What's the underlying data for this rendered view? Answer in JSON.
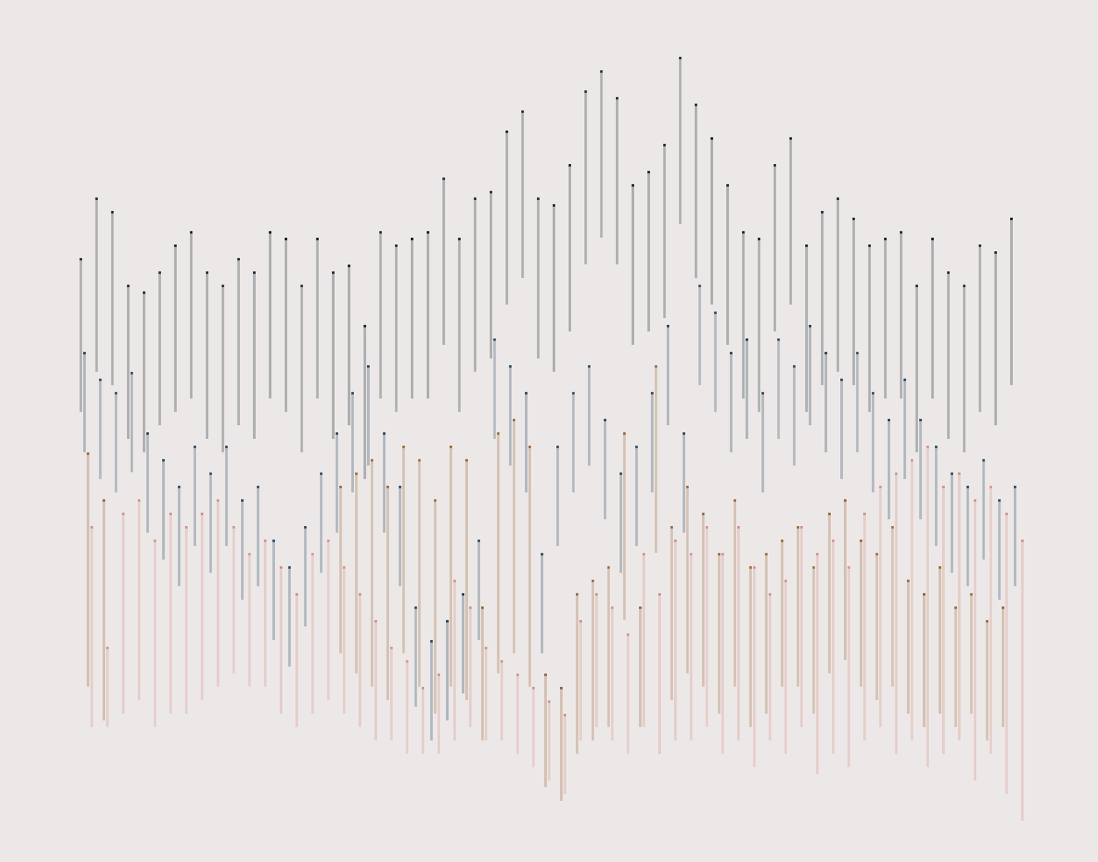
{
  "chart_data": {
    "type": "bar",
    "stacked": false,
    "grid": false,
    "tick_labels": false,
    "ylim": [
      0,
      120
    ],
    "categories": [
      null,
      null,
      null,
      null,
      null,
      null,
      null,
      null,
      null,
      null,
      null,
      null,
      null,
      null,
      null,
      null,
      null,
      null,
      null,
      null,
      null,
      null,
      null,
      null,
      null,
      null,
      null,
      null,
      null,
      null,
      null,
      null,
      null,
      null,
      null,
      null,
      null,
      null,
      null,
      null,
      null,
      null,
      null,
      null,
      null,
      null,
      null,
      null,
      null,
      null,
      null,
      null,
      null,
      null,
      null,
      null,
      null,
      null,
      null,
      null
    ],
    "series": [
      {
        "color": "#1f2a33",
        "values": [
          [
            64,
            87
          ],
          [
            70,
            96
          ],
          [
            68,
            94
          ],
          [
            60,
            83
          ],
          [
            58,
            82
          ],
          [
            62,
            85
          ],
          [
            64,
            89
          ],
          [
            66,
            91
          ],
          [
            60,
            85
          ],
          [
            58,
            83
          ],
          [
            62,
            87
          ],
          [
            60,
            85
          ],
          [
            66,
            91
          ],
          [
            64,
            90
          ],
          [
            58,
            83
          ],
          [
            66,
            90
          ],
          [
            60,
            85
          ],
          [
            62,
            86
          ],
          [
            54,
            77
          ],
          [
            66,
            91
          ],
          [
            64,
            89
          ],
          [
            66,
            90
          ],
          [
            66,
            91
          ],
          [
            74,
            99
          ],
          [
            64,
            90
          ],
          [
            70,
            96
          ],
          [
            72,
            97
          ],
          [
            80,
            106
          ],
          [
            84,
            109
          ],
          [
            72,
            96
          ],
          [
            70,
            95
          ],
          [
            76,
            101
          ],
          [
            86,
            112
          ],
          [
            90,
            115
          ],
          [
            86,
            111
          ],
          [
            74,
            98
          ],
          [
            76,
            100
          ],
          [
            78,
            104
          ],
          [
            92,
            117
          ],
          [
            84,
            110
          ],
          [
            80,
            105
          ],
          [
            74,
            98
          ],
          [
            66,
            91
          ],
          [
            64,
            90
          ],
          [
            76,
            101
          ],
          [
            80,
            105
          ],
          [
            64,
            89
          ],
          [
            68,
            94
          ],
          [
            70,
            96
          ],
          [
            68,
            93
          ],
          [
            64,
            89
          ],
          [
            66,
            90
          ],
          [
            66,
            91
          ],
          [
            58,
            83
          ],
          [
            66,
            90
          ],
          [
            60,
            85
          ],
          [
            58,
            83
          ],
          [
            64,
            89
          ],
          [
            62,
            88
          ],
          [
            68,
            93
          ]
        ]
      },
      {
        "color": "#2c4a62",
        "values": [
          [
            58,
            73
          ],
          [
            54,
            69
          ],
          [
            52,
            67
          ],
          [
            55,
            70
          ],
          [
            46,
            61
          ],
          [
            42,
            57
          ],
          [
            38,
            53
          ],
          [
            44,
            59
          ],
          [
            40,
            55
          ],
          [
            44,
            59
          ],
          [
            36,
            51
          ],
          [
            38,
            53
          ],
          [
            30,
            45
          ],
          [
            26,
            41
          ],
          [
            32,
            47
          ],
          [
            40,
            55
          ],
          [
            46,
            61
          ],
          [
            52,
            67
          ],
          [
            56,
            71
          ],
          [
            46,
            61
          ],
          [
            38,
            53
          ],
          [
            20,
            35
          ],
          [
            15,
            30
          ],
          [
            18,
            33
          ],
          [
            22,
            37
          ],
          [
            30,
            45
          ],
          [
            60,
            75
          ],
          [
            56,
            71
          ],
          [
            52,
            67
          ],
          [
            28,
            43
          ],
          [
            44,
            59
          ],
          [
            52,
            67
          ],
          [
            56,
            71
          ],
          [
            48,
            63
          ],
          [
            40,
            55
          ],
          [
            44,
            59
          ],
          [
            52,
            67
          ],
          [
            62,
            77
          ],
          [
            46,
            61
          ],
          [
            68,
            83
          ],
          [
            64,
            79
          ],
          [
            58,
            73
          ],
          [
            60,
            75
          ],
          [
            52,
            67
          ],
          [
            60,
            75
          ],
          [
            56,
            71
          ],
          [
            62,
            77
          ],
          [
            58,
            73
          ],
          [
            54,
            69
          ],
          [
            58,
            73
          ],
          [
            52,
            67
          ],
          [
            48,
            63
          ],
          [
            54,
            69
          ],
          [
            48,
            63
          ],
          [
            44,
            59
          ],
          [
            40,
            55
          ],
          [
            38,
            53
          ],
          [
            42,
            57
          ],
          [
            36,
            51
          ],
          [
            38,
            53
          ]
        ]
      },
      {
        "color": "#9a6b3c",
        "values": [
          [
            23,
            58
          ],
          [
            18,
            51
          ],
          null,
          null,
          null,
          null,
          null,
          null,
          null,
          null,
          null,
          null,
          null,
          null,
          null,
          null,
          [
            28,
            53
          ],
          [
            25,
            55
          ],
          [
            23,
            57
          ],
          [
            21,
            53
          ],
          [
            28,
            59
          ],
          [
            23,
            57
          ],
          [
            19,
            51
          ],
          [
            23,
            59
          ],
          [
            21,
            57
          ],
          [
            15,
            35
          ],
          [
            25,
            61
          ],
          [
            28,
            63
          ],
          [
            23,
            59
          ],
          [
            8,
            25
          ],
          [
            6,
            23
          ],
          [
            13,
            37
          ],
          [
            15,
            39
          ],
          [
            17,
            41
          ],
          [
            33,
            61
          ],
          [
            17,
            35
          ],
          [
            43,
            71
          ],
          [
            21,
            47
          ],
          [
            25,
            53
          ],
          [
            23,
            49
          ],
          [
            19,
            43
          ],
          [
            23,
            51
          ],
          [
            17,
            41
          ],
          [
            19,
            43
          ],
          [
            23,
            45
          ],
          [
            23,
            47
          ],
          [
            19,
            41
          ],
          [
            25,
            49
          ],
          [
            27,
            51
          ],
          [
            23,
            45
          ],
          [
            21,
            43
          ],
          [
            23,
            47
          ],
          [
            19,
            39
          ],
          [
            17,
            37
          ],
          [
            19,
            41
          ],
          [
            17,
            35
          ],
          [
            19,
            37
          ],
          [
            15,
            33
          ],
          [
            17,
            35
          ],
          null
        ]
      },
      {
        "color": "#d4928c",
        "values": [
          [
            17,
            47
          ],
          [
            17,
            29
          ],
          [
            19,
            49
          ],
          [
            21,
            51
          ],
          [
            17,
            45
          ],
          [
            19,
            49
          ],
          [
            19,
            47
          ],
          [
            21,
            49
          ],
          [
            23,
            51
          ],
          [
            25,
            47
          ],
          [
            23,
            43
          ],
          [
            23,
            45
          ],
          [
            19,
            41
          ],
          [
            17,
            37
          ],
          [
            19,
            43
          ],
          [
            21,
            45
          ],
          [
            19,
            41
          ],
          [
            17,
            37
          ],
          [
            15,
            33
          ],
          [
            15,
            29
          ],
          [
            13,
            27
          ],
          [
            13,
            23
          ],
          [
            13,
            25
          ],
          [
            15,
            39
          ],
          [
            17,
            35
          ],
          [
            15,
            29
          ],
          [
            15,
            27
          ],
          [
            13,
            25
          ],
          [
            11,
            23
          ],
          [
            9,
            21
          ],
          [
            7,
            19
          ],
          [
            15,
            33
          ],
          [
            17,
            37
          ],
          [
            15,
            35
          ],
          [
            13,
            31
          ],
          [
            17,
            43
          ],
          [
            13,
            37
          ],
          [
            15,
            45
          ],
          [
            15,
            43
          ],
          [
            17,
            47
          ],
          [
            13,
            43
          ],
          [
            15,
            47
          ],
          [
            11,
            41
          ],
          [
            15,
            37
          ],
          [
            13,
            39
          ],
          [
            17,
            47
          ],
          [
            10,
            43
          ],
          [
            13,
            45
          ],
          [
            11,
            41
          ],
          [
            15,
            49
          ],
          [
            17,
            53
          ],
          [
            13,
            55
          ],
          [
            15,
            57
          ],
          [
            11,
            59
          ],
          [
            13,
            53
          ],
          [
            15,
            55
          ],
          [
            9,
            51
          ],
          [
            13,
            53
          ],
          [
            7,
            49
          ],
          [
            3,
            45
          ]
        ]
      }
    ]
  }
}
